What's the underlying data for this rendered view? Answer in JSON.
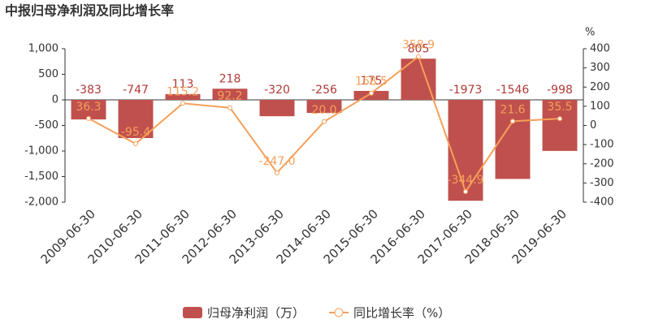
{
  "chart_data": {
    "type": "bar-line",
    "title": "中报归母净利润及同比增长率",
    "y2_unit": "%",
    "categories": [
      "2009-06-30",
      "2010-06-30",
      "2011-06-30",
      "2012-06-30",
      "2013-06-30",
      "2014-06-30",
      "2015-06-30",
      "2016-06-30",
      "2017-06-30",
      "2018-06-30",
      "2019-06-30"
    ],
    "series": [
      {
        "name": "归母净利润（万）",
        "type": "bar",
        "color": "#c0504d",
        "label_color": "#b03a37",
        "values": [
          -383,
          -747,
          113,
          218,
          -320,
          -256,
          175,
          805,
          -1973,
          -1546,
          -998
        ]
      },
      {
        "name": "同比增长率（%）",
        "type": "line",
        "axis": "y2",
        "color": "#f5a05a",
        "values": [
          36.3,
          -95.4,
          115.2,
          92.2,
          -247.0,
          20.0,
          168.5,
          358.9,
          -344.9,
          21.6,
          35.5
        ],
        "value_labels": [
          "36.3",
          "-95.4",
          "115.2",
          "92.2",
          "-247.0",
          "20.0",
          "168.5",
          "358.9",
          "-344.9",
          "21.6",
          "35.5"
        ]
      }
    ],
    "ylim": [
      -2000,
      1000
    ],
    "yticks": [
      {
        "value": 1000,
        "label": "1,000"
      },
      500,
      0,
      -500,
      {
        "value": -1000,
        "label": "-1,000"
      },
      {
        "value": -1500,
        "label": "-1,500"
      },
      {
        "value": -2000,
        "label": "-2,000"
      }
    ],
    "y2lim": [
      -400,
      400
    ],
    "y2ticks": [
      400,
      300,
      200,
      100,
      0,
      -100,
      -200,
      -300,
      -400
    ]
  }
}
